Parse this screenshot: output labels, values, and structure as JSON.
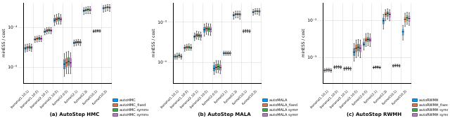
{
  "chart_data": [
    {
      "type": "box",
      "title": "(a) AutoStep HMC",
      "y_label": "minESS / cost",
      "log": "y",
      "grid": true,
      "legend": "lower right",
      "categories": [
        "banana(1,10,1)",
        "banana(1,10,5)",
        "banana(2,10,1)",
        "banana(2,10,5)",
        "funnel(2,0.5)",
        "funnel(2,1)",
        "funnel(2,3)",
        "funnel(10,1)",
        "funnel(10,3)"
      ],
      "ylim": [
        4e-06,
        0.0004
      ],
      "yticks": [
        {
          "value": 1e-05,
          "label": "10⁻⁵"
        },
        {
          "value": 0.0001,
          "label": "10⁻⁴"
        }
      ],
      "series": [
        {
          "name": "autoHMC",
          "color": "#009AFA",
          "values": [
            [
              2.4e-05,
              2.7e-05,
              3e-05,
              3.3e-05,
              3.7e-05
            ],
            [
              4.2e-05,
              4.7e-05,
              5e-05,
              5.4e-05,
              5.9e-05
            ],
            [
              6.5e-05,
              7.2e-05,
              7.8e-05,
              8.4e-05,
              9.2e-05
            ],
            [
              0.00011,
              0.00013,
              0.00015,
              0.00017,
              0.0002
            ],
            [
              6e-06,
              9e-06,
              1.2e-05,
              1.6e-05,
              2.2e-05
            ],
            [
              3.4e-05,
              3.8e-05,
              4.1e-05,
              4.4e-05,
              4.8e-05
            ],
            [
              0.00021,
              0.00024,
              0.00026,
              0.00028,
              0.00031
            ],
            [
              7.4e-05,
              7.7e-05,
              8e-05,
              8.3e-05,
              8.6e-05
            ],
            [
              0.00024,
              0.00028,
              0.0003,
              0.00032,
              0.00035
            ]
          ]
        },
        {
          "name": "autoHMC_fixed",
          "color": "#E36F47",
          "values": [
            [
              2.5e-05,
              2.8e-05,
              3.1e-05,
              3.4e-05,
              3.8e-05
            ],
            [
              4.3e-05,
              4.8e-05,
              5.2e-05,
              5.6e-05,
              6e-05
            ],
            [
              6.8e-05,
              7.5e-05,
              8.2e-05,
              8.9e-05,
              9.8e-05
            ],
            [
              0.00012,
              0.00014,
              0.00016,
              0.00018,
              0.00021
            ],
            [
              7e-06,
              1e-05,
              1.3e-05,
              1.7e-05,
              2.4e-05
            ],
            [
              3.5e-05,
              3.9e-05,
              4.2e-05,
              4.5e-05,
              4.9e-05
            ],
            [
              0.00022,
              0.00025,
              0.00027,
              0.00029,
              0.00032
            ],
            [
              7.5e-05,
              7.8e-05,
              8.1e-05,
              8.4e-05,
              8.7e-05
            ],
            [
              0.00025,
              0.00029,
              0.00031,
              0.00033,
              0.00036
            ]
          ]
        },
        {
          "name": "autoHMC symmetric",
          "color": "#3EA44E",
          "values": [
            [
              2.6e-05,
              2.9e-05,
              3.2e-05,
              3.5e-05,
              3.9e-05
            ],
            [
              4.4e-05,
              4.9e-05,
              5.3e-05,
              5.7e-05,
              6.2e-05
            ],
            [
              7e-05,
              7.8e-05,
              8.5e-05,
              9.2e-05,
              0.0001
            ],
            [
              0.00012,
              0.000145,
              0.000165,
              0.000185,
              0.00022
            ],
            [
              7e-06,
              1.1e-05,
              1.4e-05,
              1.8e-05,
              2.5e-05
            ],
            [
              3.6e-05,
              4e-05,
              4.3e-05,
              4.6e-05,
              5e-05
            ],
            [
              0.00022,
              0.00025,
              0.00028,
              0.0003,
              0.00033
            ],
            [
              7.6e-05,
              7.9e-05,
              8.2e-05,
              8.5e-05,
              8.8e-05
            ],
            [
              0.00026,
              0.0003,
              0.00032,
              0.00034,
              0.00037
            ]
          ]
        },
        {
          "name": "autoHMC symmetric jitter",
          "color": "#C271D2",
          "values": [
            [
              2.5e-05,
              2.8e-05,
              3.1e-05,
              3.4e-05,
              3.8e-05
            ],
            [
              4.4e-05,
              4.8e-05,
              5.2e-05,
              5.6e-05,
              6.1e-05
            ],
            [
              6.9e-05,
              7.7e-05,
              8.4e-05,
              9e-05,
              9.9e-05
            ],
            [
              0.00012,
              0.00014,
              0.00016,
              0.00018,
              0.00021
            ],
            [
              7e-06,
              1e-05,
              1.3e-05,
              1.7e-05,
              2.3e-05
            ],
            [
              3.5e-05,
              3.9e-05,
              4.2e-05,
              4.5e-05,
              4.9e-05
            ],
            [
              0.00022,
              0.00025,
              0.00027,
              0.0003,
              0.00033
            ],
            [
              7.5e-05,
              7.8e-05,
              8.1e-05,
              8.4e-05,
              8.7e-05
            ],
            [
              0.00025,
              0.00029,
              0.00031,
              0.00034,
              0.00037
            ]
          ]
        }
      ]
    },
    {
      "type": "box",
      "title": "(b) AutoStep MALA",
      "y_label": "minESS / cost",
      "log": "y",
      "grid": true,
      "legend": "lower right",
      "categories": [
        "banana(1,10,1)",
        "banana(1,10,5)",
        "banana(2,10,1)",
        "banana(2,10,5)",
        "funnel(2,0.5)",
        "funnel(2,1)",
        "funnel(2,3)",
        "funnel(10,1)",
        "funnel(10,3)"
      ],
      "ylim": [
        3e-07,
        3e-05
      ],
      "yticks": [
        {
          "value": 1e-06,
          "label": "10⁻⁶"
        },
        {
          "value": 1e-05,
          "label": "10⁻⁵"
        }
      ],
      "series": [
        {
          "name": "autoMALA",
          "color": "#009AFA",
          "values": [
            [
              1.2e-06,
              1.3e-06,
              1.4e-06,
              1.5e-06,
              1.6e-06
            ],
            [
              1.9e-06,
              2.1e-06,
              2.3e-06,
              2.5e-06,
              2.7e-06
            ],
            [
              3.5e-06,
              4e-06,
              4.4e-06,
              4.8e-06,
              5.4e-06
            ],
            [
              4.5e-06,
              5.5e-06,
              6.5e-06,
              7.5e-06,
              9e-06
            ],
            [
              5e-07,
              6e-07,
              7e-07,
              8.5e-07,
              1e-06
            ],
            [
              1.5e-06,
              1.6e-06,
              1.7e-06,
              1.8e-06,
              1.9e-06
            ],
            [
              1.2e-05,
              1.4e-05,
              1.5e-05,
              1.6e-05,
              1.8e-05
            ],
            [
              5.5e-06,
              5.8e-06,
              6e-06,
              6.2e-06,
              6.5e-06
            ],
            [
              1.5e-05,
              1.7e-05,
              1.8e-05,
              1.9e-05,
              2.1e-05
            ]
          ]
        },
        {
          "name": "autoMALA_fixed",
          "color": "#E36F47",
          "values": [
            [
              1.2e-06,
              1.3e-06,
              1.4e-06,
              1.5e-06,
              1.7e-06
            ],
            [
              2e-06,
              2.2e-06,
              2.4e-06,
              2.6e-06,
              2.8e-06
            ],
            [
              3.8e-06,
              4.3e-06,
              4.8e-06,
              5.3e-06,
              6e-06
            ],
            [
              5e-06,
              6e-06,
              7e-06,
              8e-06,
              9.5e-06
            ],
            [
              5.5e-07,
              6.5e-07,
              7.5e-07,
              9e-07,
              1.1e-06
            ],
            [
              1.5e-06,
              1.6e-06,
              1.7e-06,
              1.8e-06,
              1.9e-06
            ],
            [
              1.3e-05,
              1.5e-05,
              1.6e-05,
              1.7e-05,
              1.9e-05
            ],
            [
              5.6e-06,
              5.9e-06,
              6.1e-06,
              6.3e-06,
              6.6e-06
            ],
            [
              1.6e-05,
              1.8e-05,
              1.9e-05,
              2e-05,
              2.2e-05
            ]
          ]
        },
        {
          "name": "autoMALA symmetric",
          "color": "#3EA44E",
          "values": [
            [
              1.3e-06,
              1.4e-06,
              1.5e-06,
              1.6e-06,
              1.7e-06
            ],
            [
              2e-06,
              2.2e-06,
              2.4e-06,
              2.6e-06,
              2.9e-06
            ],
            [
              3.7e-06,
              4.2e-06,
              4.7e-06,
              5.2e-06,
              5.8e-06
            ],
            [
              4.8e-06,
              5.8e-06,
              6.8e-06,
              7.8e-06,
              9.2e-06
            ],
            [
              5.5e-07,
              6.5e-07,
              7.8e-07,
              9.2e-07,
              1.1e-06
            ],
            [
              1.5e-06,
              1.6e-06,
              1.7e-06,
              1.8e-06,
              1.9e-06
            ],
            [
              1.3e-05,
              1.5e-05,
              1.6e-05,
              1.7e-05,
              1.9e-05
            ],
            [
              5.6e-06,
              5.9e-06,
              6.1e-06,
              6.3e-06,
              6.6e-06
            ],
            [
              1.6e-05,
              1.8e-05,
              1.9e-05,
              2e-05,
              2.2e-05
            ]
          ]
        },
        {
          "name": "autoMALA symmetric jitter",
          "color": "#C271D2",
          "values": [
            [
              1.2e-06,
              1.3e-06,
              1.4e-06,
              1.5e-06,
              1.6e-06
            ],
            [
              2e-06,
              2.2e-06,
              2.3e-06,
              2.5e-06,
              2.8e-06
            ],
            [
              3.6e-06,
              4.1e-06,
              4.6e-06,
              5.1e-06,
              5.7e-06
            ],
            [
              4.7e-06,
              5.7e-06,
              6.7e-06,
              7.7e-06,
              9.1e-06
            ],
            [
              5.2e-07,
              6.2e-07,
              7.4e-07,
              8.8e-07,
              1.1e-06
            ],
            [
              1.5e-06,
              1.6e-06,
              1.7e-06,
              1.8e-06,
              1.9e-06
            ],
            [
              1.2e-05,
              1.4e-05,
              1.6e-05,
              1.7e-05,
              1.9e-05
            ],
            [
              5.5e-06,
              5.8e-06,
              6e-06,
              6.2e-06,
              6.5e-06
            ],
            [
              1.5e-05,
              1.7e-05,
              1.9e-05,
              2e-05,
              2.2e-05
            ]
          ]
        }
      ]
    },
    {
      "type": "box",
      "title": "(c) AutoStep RWMH",
      "y_label": "minESS / cost",
      "log": "y",
      "grid": true,
      "legend": "lower right",
      "categories": [
        "banana(1,10,1)",
        "banana(1,10,5)",
        "banana(2,10,1)",
        "banana(2,10,5)",
        "funnel(2,0.5)",
        "funnel(2,1)",
        "funnel(2,3)",
        "funnel(10,1)",
        "funnel(10,3)"
      ],
      "ylim": [
        0.0002,
        0.03
      ],
      "yticks": [
        {
          "value": 0.001,
          "label": "10⁻³"
        },
        {
          "value": 0.01,
          "label": "10⁻²"
        }
      ],
      "series": [
        {
          "name": "autoRWMH",
          "color": "#009AFA",
          "values": [
            [
              0.0004,
              0.00043,
              0.00045,
              0.00047,
              0.0005
            ],
            [
              0.0005,
              0.00053,
              0.00055,
              0.00057,
              0.0006
            ],
            [
              0.00045,
              0.00048,
              0.0005,
              0.00052,
              0.00055
            ],
            [
              0.0008,
              0.0011,
              0.0014,
              0.0018,
              0.0024
            ],
            [
              0.0016,
              0.002,
              0.0023,
              0.0027,
              0.0032
            ],
            [
              0.0005,
              0.00052,
              0.00054,
              0.00056,
              0.00058
            ],
            [
              0.006,
              0.008,
              0.01,
              0.012,
              0.015
            ],
            [
              0.00055,
              0.00058,
              0.0006,
              0.00062,
              0.00065
            ],
            [
              0.003,
              0.004,
              0.005,
              0.006,
              0.0075
            ]
          ]
        },
        {
          "name": "autoRWMH_fixed",
          "color": "#E36F47",
          "values": [
            [
              0.00041,
              0.00044,
              0.00046,
              0.00048,
              0.00051
            ],
            [
              0.00051,
              0.00054,
              0.00056,
              0.00058,
              0.00061
            ],
            [
              0.00046,
              0.00049,
              0.00051,
              0.00053,
              0.00056
            ],
            [
              0.001,
              0.0014,
              0.0018,
              0.0023,
              0.003
            ],
            [
              0.002,
              0.0026,
              0.003,
              0.0035,
              0.0045
            ],
            [
              0.00051,
              0.00053,
              0.00055,
              0.00057,
              0.00059
            ],
            [
              0.01,
              0.013,
              0.015,
              0.017,
              0.02
            ],
            [
              0.00056,
              0.00059,
              0.00061,
              0.00063,
              0.00066
            ],
            [
              0.007,
              0.009,
              0.011,
              0.013,
              0.016
            ]
          ]
        },
        {
          "name": "autoRWMH symmetric",
          "color": "#3EA44E",
          "values": [
            [
              0.00041,
              0.00044,
              0.00046,
              0.00048,
              0.00051
            ],
            [
              0.00051,
              0.00054,
              0.00056,
              0.00058,
              0.00061
            ],
            [
              0.00046,
              0.00049,
              0.00051,
              0.00053,
              0.00056
            ],
            [
              0.0011,
              0.0015,
              0.0019,
              0.0024,
              0.0031
            ],
            [
              0.0021,
              0.0027,
              0.0031,
              0.0036,
              0.0046
            ],
            [
              0.00051,
              0.00053,
              0.00055,
              0.00057,
              0.00059
            ],
            [
              0.011,
              0.013,
              0.016,
              0.018,
              0.021
            ],
            [
              0.00056,
              0.00059,
              0.00061,
              0.00063,
              0.00066
            ],
            [
              0.008,
              0.01,
              0.012,
              0.014,
              0.017
            ]
          ]
        },
        {
          "name": "autoRWMH symmetric jitter",
          "color": "#C271D2",
          "values": [
            [
              0.0004,
              0.00043,
              0.00045,
              0.00047,
              0.0005
            ],
            [
              0.0005,
              0.00053,
              0.00055,
              0.00057,
              0.0006
            ],
            [
              0.00045,
              0.00048,
              0.0005,
              0.00052,
              0.00055
            ],
            [
              0.001,
              0.0014,
              0.0018,
              0.0023,
              0.003
            ],
            [
              0.002,
              0.0026,
              0.003,
              0.0035,
              0.0044
            ],
            [
              0.0005,
              0.00052,
              0.00054,
              0.00056,
              0.00058
            ],
            [
              0.01,
              0.012,
              0.015,
              0.017,
              0.02
            ],
            [
              0.00055,
              0.00058,
              0.0006,
              0.00062,
              0.00065
            ],
            [
              0.0075,
              0.0095,
              0.0115,
              0.0135,
              0.0165
            ]
          ]
        }
      ]
    }
  ]
}
